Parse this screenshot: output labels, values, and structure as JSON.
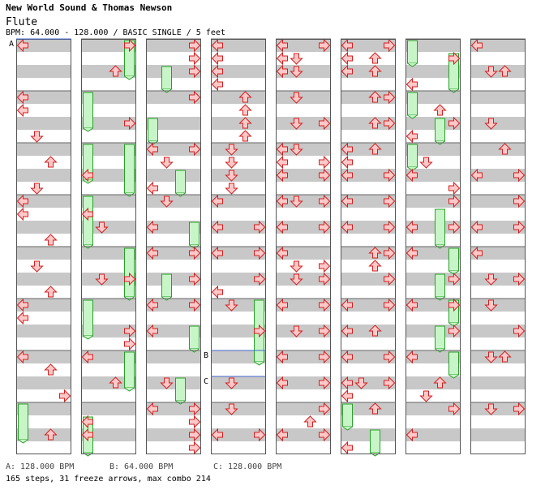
{
  "header": {
    "artist": "New World Sound & Thomas Newson",
    "title": "Flute",
    "info": "BPM: 64.000 - 128.000 / BASIC SINGLE / 5 feet"
  },
  "footer": {
    "bpm_a": "A: 128.000 BPM",
    "bpm_b": "B: 64.000 BPM",
    "bpm_c": "C: 128.000 BPM",
    "stats": "165 steps, 31 freeze arrows, max combo 214"
  },
  "markers": [
    {
      "label": "A"
    },
    {
      "label": "B"
    },
    {
      "label": "C"
    }
  ],
  "colors": {
    "arrow_fill": "#ffc8c8",
    "arrow_stroke": "#d02020",
    "freeze_fill": "#c8f5c8",
    "freeze_stroke": "#28a028",
    "stripe": "#c8c8c8",
    "marker_line": "#4466cc"
  }
}
